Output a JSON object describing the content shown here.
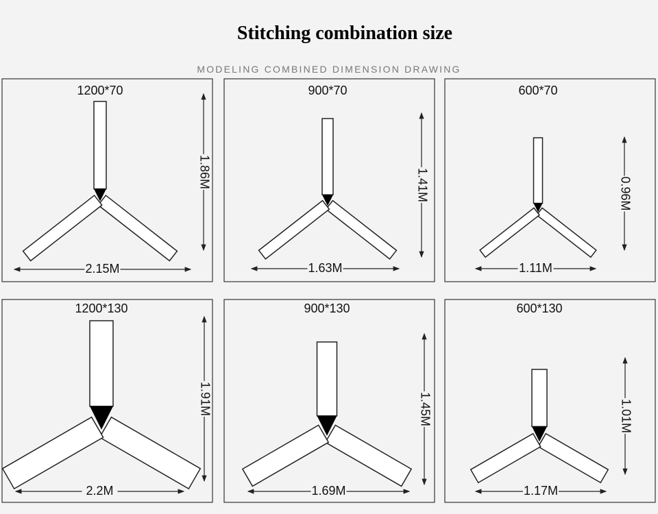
{
  "header": {
    "title": "Stitching combination size",
    "subtitle": "MODELING COMBINED DIMENSION DRAWING"
  },
  "panels": [
    {
      "label": "1200*70",
      "height": "1.86M",
      "width": "2.15M"
    },
    {
      "label": "900*70",
      "height": "1.41M",
      "width": "1.63M"
    },
    {
      "label": "600*70",
      "height": "0.96M",
      "width": "1.11M"
    },
    {
      "label": "1200*130",
      "height": "1.91M",
      "width": "2.2M"
    },
    {
      "label": "900*130",
      "height": "1.45M",
      "width": "1.69M"
    },
    {
      "label": "600*130",
      "height": "1.01M",
      "width": "1.17M"
    }
  ]
}
